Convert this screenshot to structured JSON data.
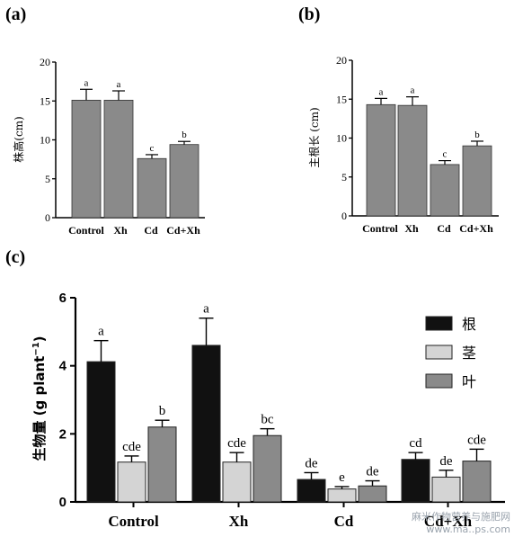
{
  "watermark": [
    "麻米作物营养与施肥网",
    "www.ma..ps.com"
  ],
  "chart_data": [
    {
      "panel": "(a)",
      "type": "bar",
      "ylabel": "株高(cm)",
      "ylim": [
        0,
        20
      ],
      "yticks": [
        0,
        5,
        10,
        15,
        20
      ],
      "categories": [
        "Control",
        "Xh",
        "Cd",
        "Cd+Xh"
      ],
      "values": [
        15.1,
        15.1,
        7.6,
        9.4
      ],
      "errors": [
        1.4,
        1.2,
        0.5,
        0.4
      ],
      "letters": [
        "a",
        "a",
        "c",
        "b"
      ],
      "color": "#8a8a8a"
    },
    {
      "panel": "(b)",
      "type": "bar",
      "ylabel": "主根长 (cm)",
      "ylim": [
        0,
        20
      ],
      "yticks": [
        0,
        5,
        10,
        15,
        20
      ],
      "categories": [
        "Control",
        "Xh",
        "Cd",
        "Cd+Xh"
      ],
      "values": [
        14.3,
        14.2,
        6.6,
        9.0
      ],
      "errors": [
        0.8,
        1.1,
        0.5,
        0.6
      ],
      "letters": [
        "a",
        "a",
        "c",
        "b"
      ],
      "color": "#8a8a8a"
    },
    {
      "panel": "(c)",
      "type": "bar",
      "ylabel": "生物量 (g plant",
      "ylabel_sup": "−1",
      "ylabel_end": ")",
      "ylim": [
        0,
        6
      ],
      "yticks": [
        0,
        2,
        4,
        6
      ],
      "categories": [
        "Control",
        "Xh",
        "Cd",
        "Cd+Xh"
      ],
      "legend_position": "top-right",
      "series": [
        {
          "name": "根",
          "color": "#111111",
          "values": [
            4.12,
            4.6,
            0.66,
            1.25
          ],
          "errors": [
            0.62,
            0.8,
            0.2,
            0.2
          ],
          "letters": [
            "a",
            "a",
            "de",
            "cd"
          ]
        },
        {
          "name": "茎",
          "color": "#d4d4d4",
          "values": [
            1.17,
            1.17,
            0.38,
            0.73
          ],
          "errors": [
            0.18,
            0.28,
            0.07,
            0.2
          ],
          "letters": [
            "cde",
            "cde",
            "e",
            "de"
          ]
        },
        {
          "name": "叶",
          "color": "#8a8a8a",
          "values": [
            2.2,
            1.95,
            0.47,
            1.2
          ],
          "errors": [
            0.2,
            0.2,
            0.15,
            0.35
          ],
          "letters": [
            "b",
            "bc",
            "de",
            "cde"
          ]
        }
      ]
    }
  ]
}
